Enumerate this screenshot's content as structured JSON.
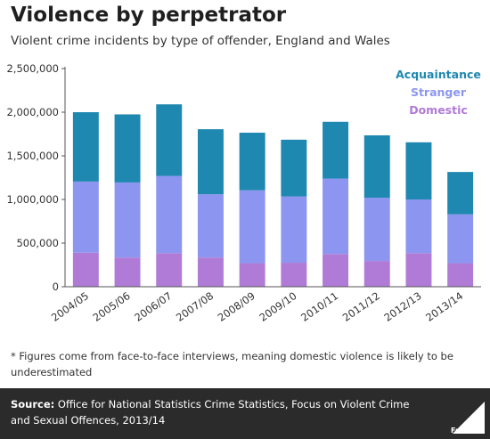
{
  "title": "Violence by perpetrator",
  "subtitle": "Violent crime incidents by type of offender, England and Wales",
  "footnote": "* Figures come from face-to-face interviews, meaning domestic violence is likely to be underestimated",
  "source_label": "Source:",
  "source_text": "Office for National Statistics Crime Statistics, Focus on Violent Crime and Sexual Offences, 2013/14",
  "brand": "Full Fact",
  "colors": {
    "domestic": "#b07bd6",
    "stranger": "#8c96f0",
    "acquaintance": "#1f88b0",
    "axis": "#555555",
    "grid": "#cccccc"
  },
  "chart_data": {
    "type": "bar",
    "stacked": true,
    "categories": [
      "2004/05",
      "2005/06",
      "2006/07",
      "2007/08",
      "2008/09",
      "2009/10",
      "2010/11",
      "2011/12",
      "2012/13",
      "2013/14"
    ],
    "series": [
      {
        "name": "Domestic",
        "values": [
          390000,
          335000,
          385000,
          335000,
          270000,
          275000,
          375000,
          295000,
          385000,
          270000
        ]
      },
      {
        "name": "Stranger",
        "values": [
          815000,
          860000,
          885000,
          725000,
          835000,
          760000,
          865000,
          725000,
          615000,
          560000
        ]
      },
      {
        "name": "Acquaintance",
        "values": [
          795000,
          780000,
          820000,
          745000,
          660000,
          650000,
          650000,
          715000,
          655000,
          485000
        ]
      }
    ],
    "legend_order": [
      "Acquaintance",
      "Stranger",
      "Domestic"
    ],
    "legend_position": "top-right",
    "ylim": [
      0,
      2500000
    ],
    "yticks": [
      "0",
      "500,000",
      "1,000,000",
      "1,500,000",
      "2,000,000",
      "2,500,000"
    ],
    "xlabel": "",
    "ylabel": "",
    "grid": false
  }
}
